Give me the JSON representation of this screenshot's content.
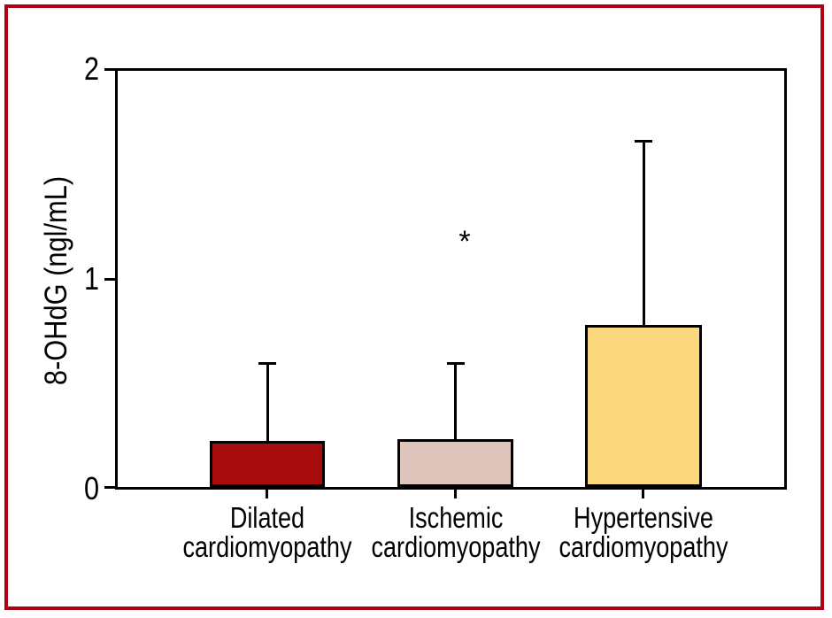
{
  "figure": {
    "border_color": "#AE0013",
    "background": "#FFFFFF"
  },
  "chart_data": {
    "type": "bar",
    "title": "",
    "xlabel": "",
    "ylabel": "8-OHdG (ngl/mL)",
    "ylim": [
      0,
      2
    ],
    "yticks": [
      "0",
      "1",
      "2"
    ],
    "categories": [
      "Dilated cardiomyopathy",
      "Ischemic cardiomyopathy",
      "Hypertensive cardiomyopathy"
    ],
    "categories_lines": [
      [
        "Dilated",
        "cardiomyopathy"
      ],
      [
        "Ischemic",
        "cardiomyopathy"
      ],
      [
        "Hypertensive",
        "cardiomyopathy"
      ]
    ],
    "values": [
      0.22,
      0.23,
      0.78
    ],
    "error_top": [
      0.6,
      0.6,
      1.67
    ],
    "error_type": "upper whisker (mean + SD)",
    "bar_colors": [
      "#A80C0C",
      "#DEC5BB",
      "#FBD77D"
    ],
    "bar_outline": "#000000",
    "grid": false,
    "legend": false,
    "annotations": [
      {
        "symbol": "*",
        "target": "Ischemic cardiomyopathy",
        "y": 1.15
      }
    ]
  }
}
